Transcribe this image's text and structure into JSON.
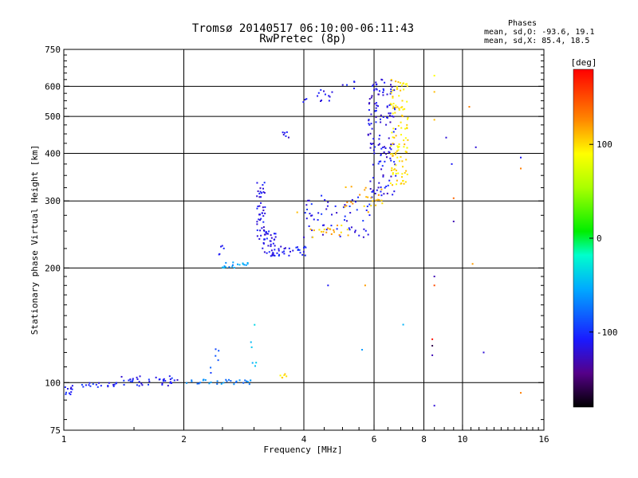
{
  "header": {
    "title_line1": "Tromsø 20140517 06:10:00-06:11:43",
    "title_line2": "RwPretec (8p)",
    "info_title": "Phases",
    "info_line1": "mean, sd,O: -93.6, 19.1",
    "info_line2": "mean, sd,X:  85.4, 18.5"
  },
  "colorbar": {
    "label": "[deg]",
    "range": [
      -180,
      180
    ],
    "ticks": [
      -100,
      0,
      100
    ],
    "tick_labels": [
      "-100",
      "0",
      "100"
    ]
  },
  "chart_data": {
    "type": "scatter",
    "xscale": "log",
    "yscale": "log",
    "xlabel": "Frequency [MHz]",
    "ylabel": "Stationary phase Virtual Height [km]",
    "xlim": [
      1,
      16
    ],
    "ylim": [
      75,
      750
    ],
    "xticks": [
      1,
      2,
      4,
      6,
      8,
      10,
      16
    ],
    "xtick_labels": [
      "1",
      "2",
      "4",
      "6",
      "8",
      "10",
      "16"
    ],
    "yticks": [
      75,
      100,
      200,
      300,
      400,
      500,
      600,
      750
    ],
    "ytick_labels": [
      "75",
      "100",
      "200",
      "300",
      "400",
      "500",
      "600",
      "750"
    ],
    "xgrid": [
      2,
      4,
      6,
      8,
      10
    ],
    "ygrid": [
      100,
      200,
      300,
      400,
      500,
      600
    ],
    "color_quantity": "phase [deg]",
    "clusters": [
      {
        "x0": 1.0,
        "x1": 1.05,
        "y0": 92,
        "y1": 98,
        "phase": -110,
        "n": 10
      },
      {
        "x0": 1.05,
        "x1": 1.35,
        "y0": 97,
        "y1": 101,
        "phase": -105,
        "n": 18
      },
      {
        "x0": 1.35,
        "x1": 2.0,
        "y0": 98,
        "y1": 104,
        "phase": -110,
        "n": 40
      },
      {
        "x0": 2.0,
        "x1": 2.95,
        "y0": 99,
        "y1": 102,
        "phase": -70,
        "n": 30
      },
      {
        "x0": 2.3,
        "x1": 2.45,
        "y0": 105,
        "y1": 130,
        "phase": -85,
        "n": 6
      },
      {
        "x0": 2.5,
        "x1": 2.9,
        "y0": 200,
        "y1": 208,
        "phase": -60,
        "n": 18
      },
      {
        "x0": 2.45,
        "x1": 2.55,
        "y0": 215,
        "y1": 230,
        "phase": -100,
        "n": 5
      },
      {
        "x0": 2.92,
        "x1": 3.05,
        "y0": 110,
        "y1": 150,
        "phase": -40,
        "n": 6
      },
      {
        "x0": 3.05,
        "x1": 3.2,
        "y0": 230,
        "y1": 340,
        "phase": -115,
        "n": 45
      },
      {
        "x0": 3.15,
        "x1": 3.4,
        "y0": 215,
        "y1": 250,
        "phase": -115,
        "n": 35
      },
      {
        "x0": 3.3,
        "x1": 4.1,
        "y0": 215,
        "y1": 230,
        "phase": -110,
        "n": 30
      },
      {
        "x0": 4.0,
        "x1": 6.0,
        "y0": 240,
        "y1": 310,
        "phase": -110,
        "n": 60
      },
      {
        "x0": 4.1,
        "x1": 5.2,
        "y0": 240,
        "y1": 260,
        "phase": 110,
        "n": 20
      },
      {
        "x0": 5.0,
        "x1": 6.4,
        "y0": 280,
        "y1": 330,
        "phase": 115,
        "n": 25
      },
      {
        "x0": 5.8,
        "x1": 6.8,
        "y0": 310,
        "y1": 630,
        "phase": -115,
        "n": 140
      },
      {
        "x0": 6.6,
        "x1": 7.3,
        "y0": 330,
        "y1": 630,
        "phase": 100,
        "n": 110
      },
      {
        "x0": 3.45,
        "x1": 3.7,
        "y0": 440,
        "y1": 455,
        "phase": -115,
        "n": 6
      },
      {
        "x0": 3.95,
        "x1": 4.8,
        "y0": 540,
        "y1": 590,
        "phase": -115,
        "n": 14
      },
      {
        "x0": 5.0,
        "x1": 5.4,
        "y0": 590,
        "y1": 620,
        "phase": -115,
        "n": 5
      },
      {
        "x0": 3.4,
        "x1": 3.65,
        "y0": 103,
        "y1": 106,
        "phase": 100,
        "n": 6
      }
    ],
    "points": [
      {
        "x": 8.5,
        "y": 640,
        "phase": 90
      },
      {
        "x": 8.5,
        "y": 580,
        "phase": 110
      },
      {
        "x": 8.5,
        "y": 490,
        "phase": 110
      },
      {
        "x": 9.1,
        "y": 440,
        "phase": -120
      },
      {
        "x": 9.4,
        "y": 375,
        "phase": -110
      },
      {
        "x": 9.5,
        "y": 305,
        "phase": 140
      },
      {
        "x": 9.5,
        "y": 265,
        "phase": -130
      },
      {
        "x": 8.5,
        "y": 190,
        "phase": -130
      },
      {
        "x": 8.5,
        "y": 180,
        "phase": 150
      },
      {
        "x": 8.4,
        "y": 130,
        "phase": 175
      },
      {
        "x": 8.4,
        "y": 125,
        "phase": -160
      },
      {
        "x": 8.4,
        "y": 118,
        "phase": -130
      },
      {
        "x": 8.5,
        "y": 87,
        "phase": -120
      },
      {
        "x": 10.4,
        "y": 530,
        "phase": 130
      },
      {
        "x": 10.8,
        "y": 415,
        "phase": -120
      },
      {
        "x": 10.6,
        "y": 205,
        "phase": 120
      },
      {
        "x": 11.3,
        "y": 120,
        "phase": -120
      },
      {
        "x": 14.0,
        "y": 390,
        "phase": -110
      },
      {
        "x": 14.0,
        "y": 365,
        "phase": 130
      },
      {
        "x": 14.0,
        "y": 94,
        "phase": 130
      },
      {
        "x": 5.7,
        "y": 180,
        "phase": 120
      },
      {
        "x": 4.6,
        "y": 180,
        "phase": -110
      },
      {
        "x": 7.1,
        "y": 142,
        "phase": -50
      },
      {
        "x": 5.6,
        "y": 122,
        "phase": -60
      },
      {
        "x": 3.85,
        "y": 280,
        "phase": 110
      }
    ]
  }
}
